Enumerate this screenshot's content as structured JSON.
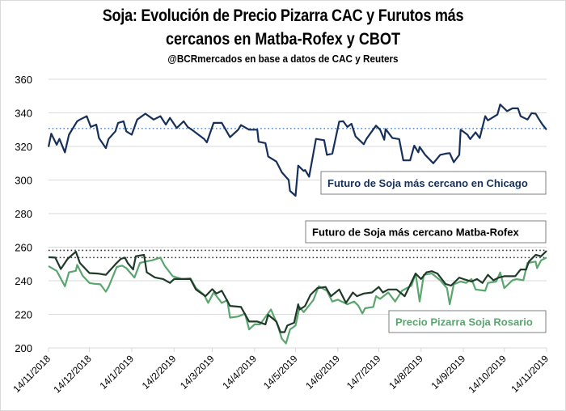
{
  "title_line1": "Soja: Evolución de Precio Pizarra CAC y Furutos más",
  "title_line2": "cercanos en Matba-Rofex y CBOT",
  "subtitle": "@BCRmercados  en base a datos de CAC y Reuters",
  "chart_data": {
    "type": "line",
    "title": "Soja: Evolución de Precio Pizarra CAC y Furutos más cercanos en Matba-Rofex y CBOT",
    "subtitle": "@BCRmercados en base a datos de CAC y Reuters",
    "ylim": [
      200,
      360
    ],
    "yticks": [
      200,
      220,
      240,
      260,
      280,
      300,
      320,
      340,
      360
    ],
    "x_unit": "days since 14/11/2018",
    "xlim": [
      0,
      365
    ],
    "xticks": [
      {
        "day": 0,
        "label": "14/11/2018"
      },
      {
        "day": 30,
        "label": "14/12/2018"
      },
      {
        "day": 61,
        "label": "14/1/2019"
      },
      {
        "day": 92,
        "label": "14/2/2019"
      },
      {
        "day": 120,
        "label": "14/3/2019"
      },
      {
        "day": 151,
        "label": "14/4/2019"
      },
      {
        "day": 181,
        "label": "14/5/2019"
      },
      {
        "day": 212,
        "label": "14/6/2019"
      },
      {
        "day": 242,
        "label": "14/7/2019"
      },
      {
        "day": 273,
        "label": "14/8/2019"
      },
      {
        "day": 304,
        "label": "14/9/2019"
      },
      {
        "day": 334,
        "label": "14/10/2019"
      },
      {
        "day": 365,
        "label": "14/11/2019"
      }
    ],
    "grid": true,
    "reference_lines": [
      {
        "value": 330.7,
        "color": "#5b8fd6",
        "style": "dotted"
      },
      {
        "value": 258.1,
        "color": "#333333",
        "style": "dotted"
      },
      {
        "value": 253.8,
        "color": "#333333",
        "style": "dotted"
      }
    ],
    "series": [
      {
        "name": "Futuro de Soja más cercano en Chicago",
        "color": "#17305a",
        "points": [
          [
            0,
            319.7
          ],
          [
            2,
            327.6
          ],
          [
            6,
            321
          ],
          [
            8,
            324.5
          ],
          [
            12,
            316.5
          ],
          [
            15,
            327
          ],
          [
            21,
            335
          ],
          [
            23,
            336
          ],
          [
            28,
            338
          ],
          [
            31,
            331.6
          ],
          [
            35,
            333
          ],
          [
            37,
            325
          ],
          [
            42,
            319
          ],
          [
            44,
            324.5
          ],
          [
            49,
            329
          ],
          [
            51,
            334
          ],
          [
            55,
            335
          ],
          [
            57,
            329
          ],
          [
            61,
            327
          ],
          [
            65,
            336
          ],
          [
            71,
            339.5
          ],
          [
            77,
            336
          ],
          [
            82,
            338
          ],
          [
            86,
            333
          ],
          [
            89,
            337
          ],
          [
            94,
            331
          ],
          [
            99,
            335
          ],
          [
            102,
            331.6
          ],
          [
            105,
            330
          ],
          [
            114,
            324.5
          ],
          [
            116,
            322.4
          ],
          [
            121,
            334
          ],
          [
            127,
            334
          ],
          [
            133,
            325.5
          ],
          [
            139,
            330
          ],
          [
            141,
            332.7
          ],
          [
            147,
            330
          ],
          [
            153,
            330
          ],
          [
            154,
            322.8
          ],
          [
            159,
            322
          ],
          [
            161,
            314
          ],
          [
            167,
            311
          ],
          [
            171,
            304.6
          ],
          [
            176,
            300
          ],
          [
            177,
            293.5
          ],
          [
            181,
            290.6
          ],
          [
            183,
            308.6
          ],
          [
            187,
            305.4
          ],
          [
            188,
            306
          ],
          [
            191,
            302
          ],
          [
            196,
            324.5
          ],
          [
            202,
            323.7
          ],
          [
            204,
            315
          ],
          [
            208,
            315.7
          ],
          [
            213,
            334.8
          ],
          [
            216,
            335
          ],
          [
            219,
            331.6
          ],
          [
            222,
            333.5
          ],
          [
            225,
            326
          ],
          [
            231,
            321.3
          ],
          [
            233,
            324.5
          ],
          [
            240,
            332.4
          ],
          [
            243,
            330
          ],
          [
            246,
            324
          ],
          [
            247,
            330.3
          ],
          [
            252,
            325
          ],
          [
            257,
            324.4
          ],
          [
            260,
            311.7
          ],
          [
            265,
            311.7
          ],
          [
            268,
            320.5
          ],
          [
            271,
            316.5
          ],
          [
            272,
            319.7
          ],
          [
            276,
            315
          ],
          [
            282,
            310
          ],
          [
            287,
            315
          ],
          [
            291,
            315.7
          ],
          [
            294,
            316
          ],
          [
            297,
            310.6
          ],
          [
            301,
            315
          ],
          [
            302,
            330
          ],
          [
            307,
            327
          ],
          [
            309,
            324.4
          ],
          [
            313,
            328.4
          ],
          [
            316,
            325
          ],
          [
            320,
            338
          ],
          [
            322,
            335.5
          ],
          [
            329,
            339
          ],
          [
            331,
            345
          ],
          [
            336,
            341
          ],
          [
            340,
            342.7
          ],
          [
            344,
            342.7
          ],
          [
            346,
            338
          ],
          [
            351,
            336
          ],
          [
            354,
            339.8
          ],
          [
            357,
            339.5
          ],
          [
            359,
            336.7
          ],
          [
            362,
            333
          ],
          [
            365,
            330
          ]
        ]
      },
      {
        "name": "Futuro de Soja más cercano Matba-Rofex",
        "color": "#1f3a28",
        "points": [
          [
            0,
            254
          ],
          [
            5,
            253.8
          ],
          [
            9,
            247
          ],
          [
            14,
            253
          ],
          [
            20,
            257.3
          ],
          [
            23,
            250.6
          ],
          [
            30,
            244.6
          ],
          [
            36,
            244.3
          ],
          [
            42,
            243.5
          ],
          [
            49,
            249.8
          ],
          [
            53,
            253
          ],
          [
            56,
            253.8
          ],
          [
            58,
            250.6
          ],
          [
            62,
            246.7
          ],
          [
            64,
            254.6
          ],
          [
            70,
            255.4
          ],
          [
            72,
            245
          ],
          [
            78,
            242
          ],
          [
            84,
            241
          ],
          [
            89,
            238.7
          ],
          [
            92,
            241
          ],
          [
            98,
            241
          ],
          [
            104,
            241
          ],
          [
            108,
            234.8
          ],
          [
            115,
            230.8
          ],
          [
            120,
            235
          ],
          [
            123,
            232.4
          ],
          [
            127,
            234
          ],
          [
            133,
            225
          ],
          [
            141,
            224.4
          ],
          [
            147,
            215.7
          ],
          [
            153,
            215.7
          ],
          [
            159,
            214
          ],
          [
            161,
            219.7
          ],
          [
            167,
            215.7
          ],
          [
            170,
            209.4
          ],
          [
            173,
            209.4
          ],
          [
            175,
            213.3
          ],
          [
            180,
            215
          ],
          [
            183,
            226
          ],
          [
            187,
            224.4
          ],
          [
            184,
            222.9
          ],
          [
            188,
            225
          ],
          [
            192,
            231.6
          ],
          [
            197,
            235.6
          ],
          [
            203,
            236.3
          ],
          [
            207,
            230.8
          ],
          [
            213,
            234.8
          ],
          [
            218,
            226.8
          ],
          [
            223,
            233
          ],
          [
            226,
            230.8
          ],
          [
            231,
            232.4
          ],
          [
            237,
            233
          ],
          [
            242,
            236.3
          ],
          [
            245,
            233
          ],
          [
            249,
            234.8
          ],
          [
            255,
            234.8
          ],
          [
            261,
            230.8
          ],
          [
            269,
            244.3
          ],
          [
            273,
            241
          ],
          [
            277,
            245
          ],
          [
            281,
            245.7
          ],
          [
            285,
            244.3
          ],
          [
            291,
            238
          ],
          [
            295,
            237.1
          ],
          [
            301,
            241.9
          ],
          [
            304,
            241
          ],
          [
            310,
            239.5
          ],
          [
            314,
            241
          ],
          [
            318,
            238.7
          ],
          [
            322,
            243.5
          ],
          [
            326,
            240.3
          ],
          [
            330,
            241.9
          ],
          [
            334,
            242.7
          ],
          [
            342,
            242.7
          ],
          [
            346,
            246.7
          ],
          [
            350,
            246.7
          ],
          [
            352,
            251.4
          ],
          [
            357,
            255.4
          ],
          [
            361,
            254.6
          ],
          [
            365,
            257.8
          ]
        ]
      },
      {
        "name": "Precio Pizarra Soja Rosario",
        "color": "#5aa66e",
        "points": [
          [
            0,
            248.7
          ],
          [
            6,
            245.9
          ],
          [
            12,
            236.7
          ],
          [
            15,
            245
          ],
          [
            20,
            245.9
          ],
          [
            21,
            249.5
          ],
          [
            25,
            243
          ],
          [
            30,
            238.7
          ],
          [
            33,
            238.2
          ],
          [
            38,
            237.9
          ],
          [
            42,
            233.5
          ],
          [
            44,
            236.3
          ],
          [
            50,
            248.2
          ],
          [
            54,
            249
          ],
          [
            57,
            247.5
          ],
          [
            63,
            241.9
          ],
          [
            67,
            250.6
          ],
          [
            71,
            251.4
          ],
          [
            76,
            252.2
          ],
          [
            82,
            253.8
          ],
          [
            85,
            249
          ],
          [
            91,
            242.7
          ],
          [
            98,
            241
          ],
          [
            104,
            241.4
          ],
          [
            108,
            235.6
          ],
          [
            114,
            231.6
          ],
          [
            117,
            226.8
          ],
          [
            121,
            233
          ],
          [
            127,
            226.8
          ],
          [
            131,
            228.4
          ],
          [
            133,
            218
          ],
          [
            139,
            218.7
          ],
          [
            144,
            220.4
          ],
          [
            147,
            211
          ],
          [
            151,
            214
          ],
          [
            155,
            214
          ],
          [
            163,
            222.9
          ],
          [
            168,
            213.3
          ],
          [
            171,
            205.4
          ],
          [
            174,
            202.7
          ],
          [
            177,
            211
          ],
          [
            181,
            213.3
          ],
          [
            184,
            224.4
          ],
          [
            187,
            221.3
          ],
          [
            194,
            228.4
          ],
          [
            198,
            236.7
          ],
          [
            204,
            234
          ],
          [
            208,
            227.6
          ],
          [
            212,
            228.7
          ],
          [
            219,
            226
          ],
          [
            224,
            227.6
          ],
          [
            227,
            225.2
          ],
          [
            230,
            220.5
          ],
          [
            232,
            223.6
          ],
          [
            238,
            224.4
          ],
          [
            240,
            230.8
          ],
          [
            243,
            229.2
          ],
          [
            249,
            233
          ],
          [
            254,
            227.6
          ],
          [
            259,
            234
          ],
          [
            266,
            237.1
          ],
          [
            269,
            244.3
          ],
          [
            272,
            227.6
          ],
          [
            275,
            243.5
          ],
          [
            281,
            244.3
          ],
          [
            287,
            240.3
          ],
          [
            292,
            235.6
          ],
          [
            294,
            226
          ],
          [
            297,
            237.9
          ],
          [
            302,
            239.5
          ],
          [
            306,
            238.7
          ],
          [
            310,
            241
          ],
          [
            313,
            234.8
          ],
          [
            320,
            234
          ],
          [
            322,
            238.7
          ],
          [
            328,
            239.5
          ],
          [
            331,
            244.9
          ],
          [
            334,
            235.6
          ],
          [
            340,
            240.3
          ],
          [
            343,
            241
          ],
          [
            348,
            240.3
          ],
          [
            351,
            250.6
          ],
          [
            357,
            251.4
          ],
          [
            358,
            247.5
          ],
          [
            361,
            252.2
          ],
          [
            365,
            253.8
          ]
        ]
      }
    ],
    "annotations": [
      "Futuro de Soja más cercano en Chicago",
      "Futuro de Soja más cercano Matba-Rofex",
      "Precio Pizarra Soja Rosario"
    ]
  }
}
